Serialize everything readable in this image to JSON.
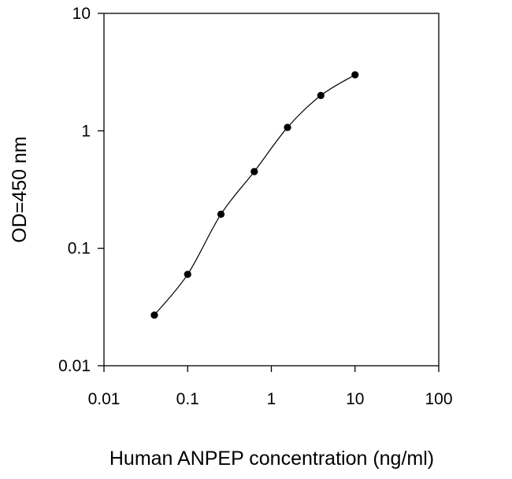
{
  "chart_data": {
    "type": "line",
    "title": "",
    "xlabel": "Human ANPEP concentration (ng/ml)",
    "ylabel": "OD=450 nm",
    "xscale": "log",
    "yscale": "log",
    "xlim": [
      0.01,
      100
    ],
    "ylim": [
      0.01,
      10
    ],
    "grid": false,
    "x_ticks": [
      "0.01",
      "0.1",
      "1",
      "10",
      "100"
    ],
    "y_ticks": [
      "0.01",
      "0.1",
      "1",
      "10"
    ],
    "series": [
      {
        "x": [
          0.04,
          0.1,
          0.25,
          0.625,
          1.56,
          3.9,
          10
        ],
        "y": [
          0.027,
          0.06,
          0.195,
          0.45,
          1.07,
          2.0,
          3.0
        ]
      }
    ],
    "colors": {
      "line": "#000000",
      "marker": "#000000",
      "axis": "#000000"
    }
  }
}
